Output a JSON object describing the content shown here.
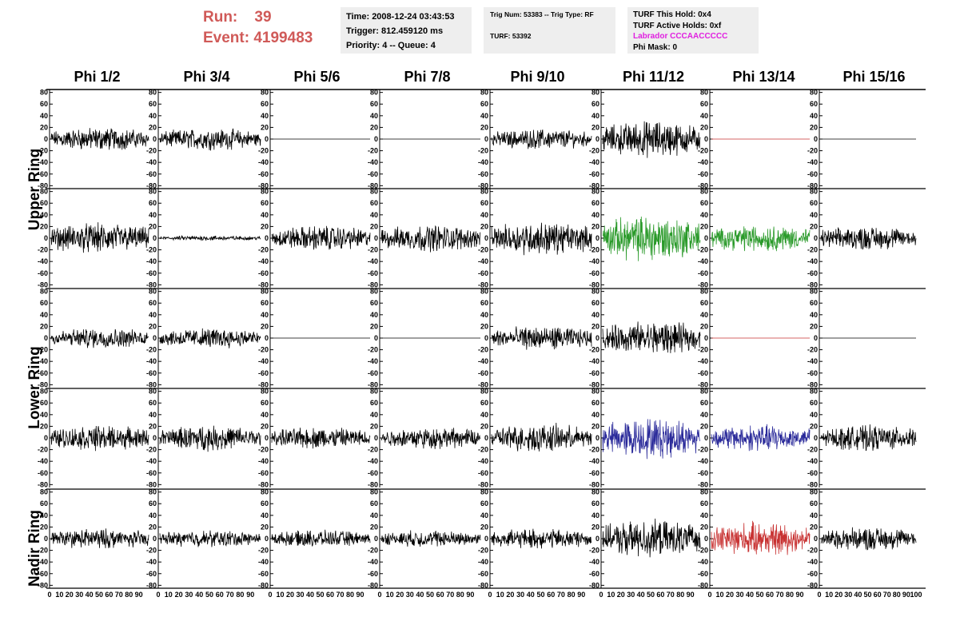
{
  "run": {
    "run_label": "Run:",
    "run_value": "39",
    "event_label": "Event:",
    "event_value": "4199483"
  },
  "box1": {
    "time": "Time: 2008-12-24 03:43:53",
    "trigger": "Trigger: 812.459120 ms",
    "priority": "Priority: 4 -- Queue: 4"
  },
  "box2": {
    "trig": "Trig Num: 53383 -- Trig Type: RF",
    "turf": "TURF: 53392"
  },
  "box3": {
    "this_hold": "TURF This Hold: 0x4",
    "active_holds": "TURF Active Holds: 0xf",
    "labrador": "Labrador CCCAACCCCC",
    "phi_mask": "Phi Mask: 0"
  },
  "columns": [
    "Phi 1/2",
    "Phi 3/4",
    "Phi 5/6",
    "Phi 7/8",
    "Phi 9/10",
    "Phi 11/12",
    "Phi 13/14",
    "Phi 15/16"
  ],
  "rings": {
    "upper": "Upper Ring",
    "lower": "Lower Ring",
    "nadir": "Nadir Ring"
  },
  "colors": {
    "black": "#000000",
    "green": "#2a9a2a",
    "blue": "#2a2a9a",
    "red": "#c83232",
    "title": "#d05a58",
    "magenta": "#e020e0"
  },
  "chart_data": {
    "type": "line",
    "y_ticks": [
      -80,
      -60,
      -40,
      -20,
      0,
      20,
      40,
      60,
      80
    ],
    "ylim": [
      -85,
      85
    ],
    "xlim": [
      0,
      100
    ],
    "x_tick_labels": [
      "0",
      "10",
      "20",
      "30",
      "40",
      "50",
      "60",
      "70",
      "80",
      "90",
      "100"
    ],
    "panels": [
      [
        {
          "amp": 14,
          "color": "black"
        },
        {
          "amp": 13,
          "color": "black"
        },
        {
          "amp": 0,
          "color": "black"
        },
        {
          "amp": 0,
          "color": "black"
        },
        {
          "amp": 12,
          "color": "black"
        },
        {
          "amp": 22,
          "color": "black"
        },
        {
          "amp": 0,
          "color": "red"
        },
        {
          "amp": 0,
          "color": "black"
        }
      ],
      [
        {
          "amp": 18,
          "color": "black"
        },
        {
          "amp": 3,
          "color": "black"
        },
        {
          "amp": 15,
          "color": "black"
        },
        {
          "amp": 16,
          "color": "black"
        },
        {
          "amp": 20,
          "color": "black"
        },
        {
          "amp": 28,
          "color": "green"
        },
        {
          "amp": 16,
          "color": "green"
        },
        {
          "amp": 14,
          "color": "black"
        }
      ],
      [
        {
          "amp": 12,
          "color": "black"
        },
        {
          "amp": 12,
          "color": "black"
        },
        {
          "amp": 0,
          "color": "black"
        },
        {
          "amp": 0,
          "color": "black"
        },
        {
          "amp": 14,
          "color": "black"
        },
        {
          "amp": 20,
          "color": "black"
        },
        {
          "amp": 0,
          "color": "red"
        },
        {
          "amp": 0,
          "color": "black"
        }
      ],
      [
        {
          "amp": 15,
          "color": "black"
        },
        {
          "amp": 15,
          "color": "black"
        },
        {
          "amp": 13,
          "color": "black"
        },
        {
          "amp": 13,
          "color": "black"
        },
        {
          "amp": 17,
          "color": "black"
        },
        {
          "amp": 24,
          "color": "blue"
        },
        {
          "amp": 16,
          "color": "blue"
        },
        {
          "amp": 15,
          "color": "black"
        }
      ],
      [
        {
          "amp": 12,
          "color": "black"
        },
        {
          "amp": 10,
          "color": "black"
        },
        {
          "amp": 10,
          "color": "black"
        },
        {
          "amp": 10,
          "color": "black"
        },
        {
          "amp": 12,
          "color": "black"
        },
        {
          "amp": 22,
          "color": "black"
        },
        {
          "amp": 20,
          "color": "red"
        },
        {
          "amp": 14,
          "color": "black"
        }
      ]
    ]
  }
}
